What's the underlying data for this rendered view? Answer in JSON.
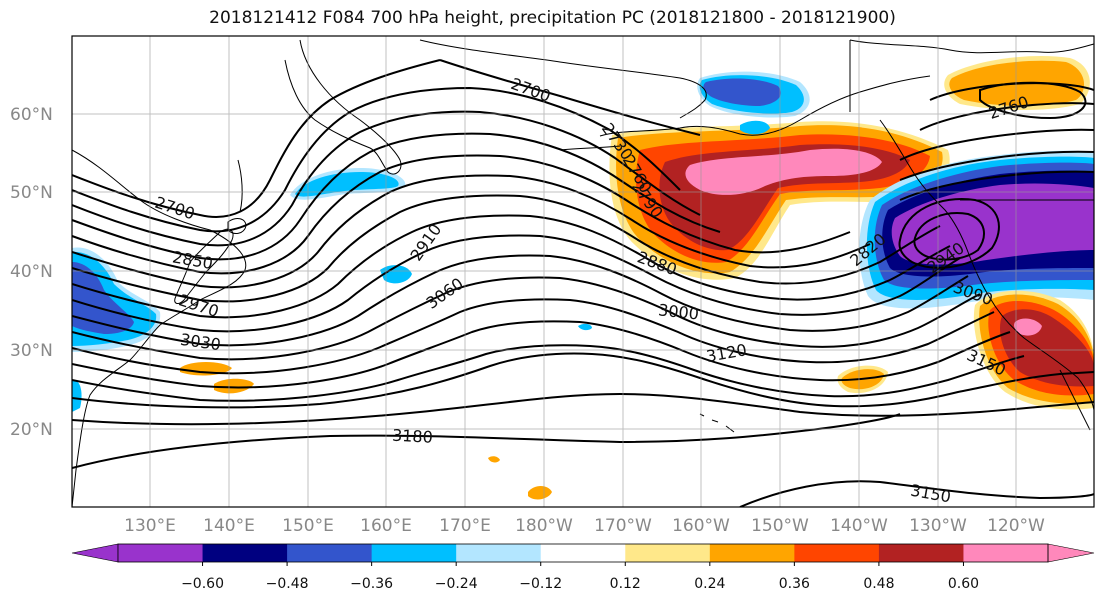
{
  "title": "2018121412 F084 700 hPa height, precipitation PC (2018121800 - 2018121900)",
  "lat_labels": [
    "60°N",
    "50°N",
    "40°N",
    "30°N",
    "20°N"
  ],
  "lon_labels": [
    "130°E",
    "140°E",
    "150°E",
    "160°E",
    "170°E",
    "180°W",
    "170°W",
    "160°W",
    "150°W",
    "140°W",
    "130°W",
    "120°W"
  ],
  "contour_labels": [
    "2700",
    "2730",
    "2760",
    "2790",
    "2700",
    "2850",
    "2910",
    "3060",
    "2970",
    "3030",
    "2880",
    "3000",
    "3120",
    "2820",
    "2940",
    "3090",
    "3150",
    "3180",
    "3150",
    "2760"
  ],
  "colorbar": {
    "ticks": [
      "−0.60",
      "−0.48",
      "−0.36",
      "−0.24",
      "−0.12",
      "0.12",
      "0.24",
      "0.36",
      "0.48",
      "0.60"
    ],
    "colors": [
      "#9933cc",
      "#000080",
      "#3355cc",
      "#00bfff",
      "#b3e6ff",
      "#ffffff",
      "#ffe88a",
      "#ffa500",
      "#ff4500",
      "#b22222",
      "#ff88bb"
    ]
  },
  "palette": {
    "purple": "#9933cc",
    "navy": "#000080",
    "blue": "#3355cc",
    "cyan": "#00bfff",
    "lightcyan": "#b3e6ff",
    "yellow": "#ffe88a",
    "orange": "#ffa500",
    "redorange": "#ff4500",
    "darkred": "#b22222",
    "pink": "#ff88bb"
  }
}
